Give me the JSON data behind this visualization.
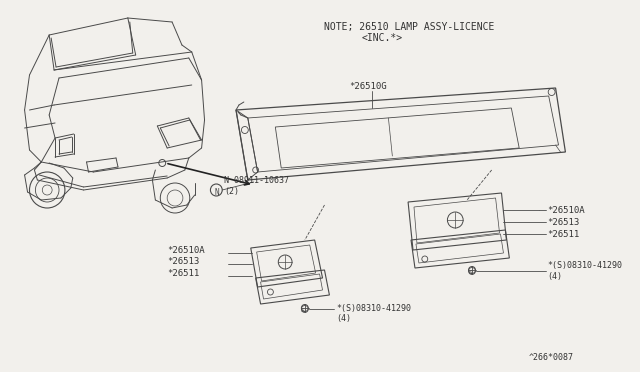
{
  "bg_color": "#f2f0ec",
  "line_color": "#4a4a4a",
  "text_color": "#333333",
  "title_line1": "NOTE; 26510 LAMP ASSY-LICENCE",
  "title_line2": "<INC.*>",
  "part_code": "^266*0087",
  "labels": {
    "N_nut": "N 08911-10637\n(2)",
    "26510G": "*26510G",
    "26510A_right": "*26510A",
    "26513_right": "*26513",
    "26511_right": "*26511",
    "screw_right": "*(S)08310-41290\n(4)",
    "26510A_left": "*26510A",
    "26513_left": "*26513",
    "26511_left": "*26511",
    "screw_left": "*(S)08310-41290\n(4)"
  },
  "figsize": [
    6.4,
    3.72
  ],
  "dpi": 100
}
